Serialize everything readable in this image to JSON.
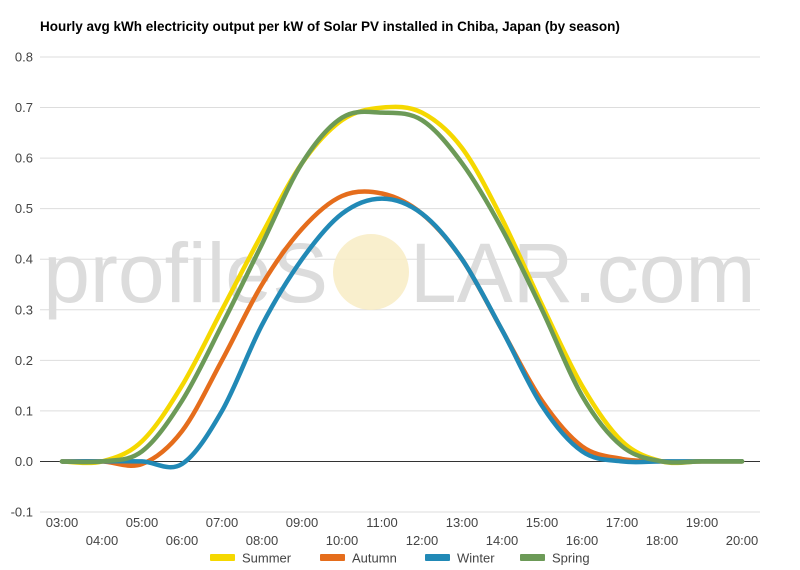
{
  "watermark": {
    "left": "profileS",
    "right": "LAR.com"
  },
  "chart_data": {
    "type": "line",
    "title": "Hourly avg kWh electricity output per kW of Solar PV installed in Chiba, Japan (by season)",
    "xlabel": "",
    "ylabel": "",
    "ylim": [
      -0.1,
      0.8
    ],
    "yticks": [
      "-0.1",
      "0.0",
      "0.1",
      "0.2",
      "0.3",
      "0.4",
      "0.5",
      "0.6",
      "0.7",
      "0.8"
    ],
    "categories": [
      "03:00",
      "04:00",
      "05:00",
      "06:00",
      "07:00",
      "08:00",
      "09:00",
      "10:00",
      "11:00",
      "12:00",
      "13:00",
      "14:00",
      "15:00",
      "16:00",
      "17:00",
      "18:00",
      "19:00",
      "20:00"
    ],
    "grid": true,
    "legend_position": "bottom",
    "series": [
      {
        "name": "Summer",
        "color": "#f5d800",
        "values": [
          0.0,
          0.0,
          0.04,
          0.15,
          0.3,
          0.45,
          0.59,
          0.675,
          0.7,
          0.69,
          0.62,
          0.48,
          0.31,
          0.15,
          0.04,
          0.0,
          0.0,
          0.0
        ]
      },
      {
        "name": "Autumn",
        "color": "#e56d1c",
        "values": [
          0.0,
          0.0,
          -0.005,
          0.06,
          0.2,
          0.35,
          0.46,
          0.525,
          0.53,
          0.49,
          0.4,
          0.26,
          0.12,
          0.03,
          0.005,
          0.0,
          0.0,
          0.0
        ]
      },
      {
        "name": "Winter",
        "color": "#2189b6",
        "values": [
          0.0,
          0.0,
          0.0,
          -0.005,
          0.1,
          0.27,
          0.4,
          0.49,
          0.52,
          0.49,
          0.4,
          0.26,
          0.11,
          0.02,
          0.0,
          0.0,
          0.0,
          0.0
        ]
      },
      {
        "name": "Spring",
        "color": "#6c9a57",
        "values": [
          0.0,
          0.0,
          0.02,
          0.12,
          0.27,
          0.43,
          0.59,
          0.68,
          0.69,
          0.675,
          0.59,
          0.46,
          0.3,
          0.13,
          0.03,
          0.0,
          0.0,
          0.0
        ]
      }
    ]
  }
}
